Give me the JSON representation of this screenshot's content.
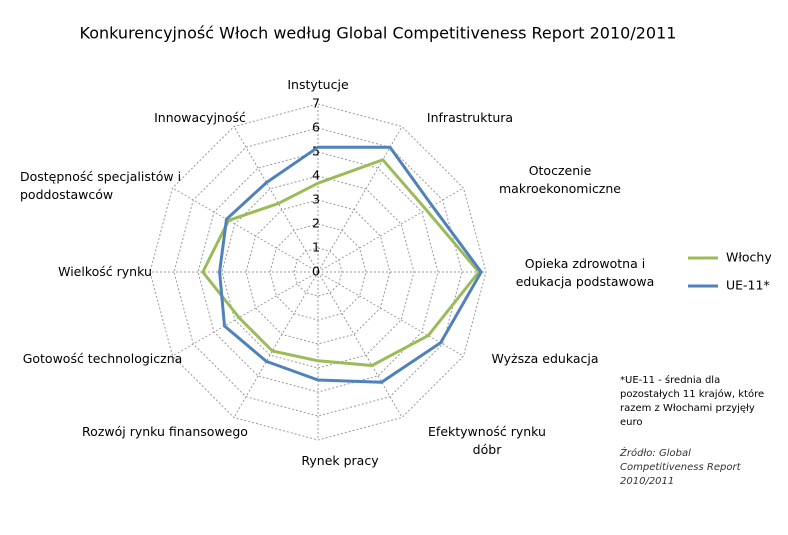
{
  "chart_data": {
    "type": "radar",
    "title": "Konkurencyjność Włoch według Global Competitiveness Report 2010/2011",
    "categories": [
      "Instytucje",
      "Infrastruktura",
      "Otoczenie makroekonomiczne",
      "Opieka zdrowotna i edukacja podstawowa",
      "Wyższa edukacja",
      "Efektywność rynku dóbr",
      "Rynek pracy",
      "Rozwój rynku finansowego",
      "Gotowość technologiczna",
      "Wielkość rynku",
      "Dostępność specjalistów i poddostawców",
      "Innowacyjność"
    ],
    "series": [
      {
        "name": "Włochy",
        "color": "#9bbb59",
        "values": [
          3.7,
          5.4,
          5.2,
          6.7,
          5.3,
          4.5,
          3.7,
          3.8,
          3.8,
          4.8,
          4.3,
          3.3
        ]
      },
      {
        "name": "UE-11*",
        "color": "#4f81bd",
        "values": [
          5.2,
          6.0,
          5.5,
          6.8,
          5.9,
          5.3,
          4.5,
          4.3,
          4.5,
          4.1,
          4.4,
          4.3
        ]
      }
    ],
    "ylim": [
      0,
      7
    ],
    "yticks": [
      0,
      1,
      2,
      3,
      4,
      5,
      6,
      7
    ],
    "grid": true,
    "legend": "right",
    "annotations": [
      "*UE-11 - średnia dla pozostałych 11 krajów, które razem z Włochami przyjęły euro",
      "Źródło: Global Competitiveness Report 2010/2011"
    ]
  }
}
